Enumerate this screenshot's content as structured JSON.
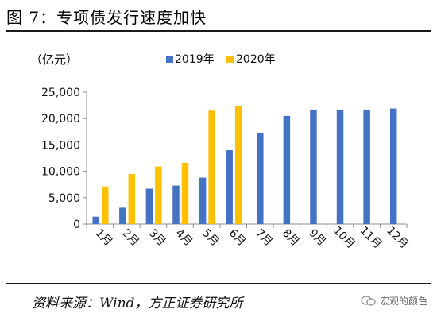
{
  "figure": {
    "title": "图 7：专项债发行速度加快",
    "source": "资料来源：Wind，方正证券研究所",
    "watermark": "宏观的颜色",
    "watermark_icon": "wechat-icon"
  },
  "chart_data": {
    "type": "bar",
    "unit_label": "（亿元）",
    "categories": [
      "1月",
      "2月",
      "3月",
      "4月",
      "5月",
      "6月",
      "7月",
      "8月",
      "9月",
      "10月",
      "11月",
      "12月"
    ],
    "series": [
      {
        "name": "2019年",
        "color": "#4472C4",
        "values": [
          1400,
          3100,
          6700,
          7300,
          8800,
          14000,
          17200,
          20500,
          21700,
          21700,
          21700,
          21900
        ]
      },
      {
        "name": "2020年",
        "color": "#FFC000",
        "values": [
          7100,
          9500,
          10900,
          11600,
          21500,
          22300,
          null,
          null,
          null,
          null,
          null,
          null
        ]
      }
    ],
    "ylim": [
      0,
      25000
    ],
    "yticks": [
      0,
      5000,
      10000,
      15000,
      20000,
      25000
    ],
    "ytick_labels": [
      "0",
      "5,000",
      "10,000",
      "15,000",
      "20,000",
      "25,000"
    ],
    "grid": false,
    "legend_position": "top-right"
  }
}
